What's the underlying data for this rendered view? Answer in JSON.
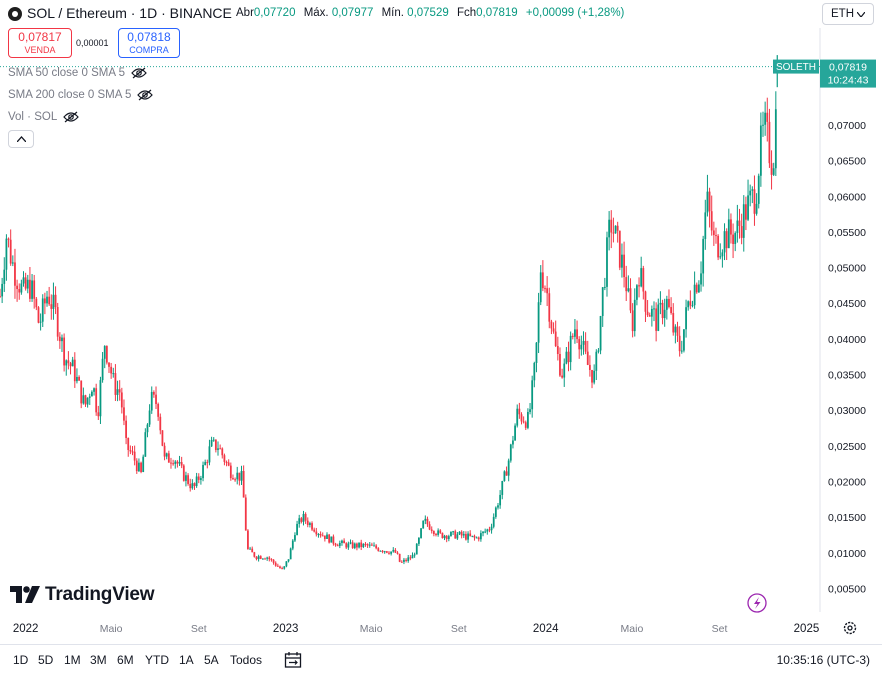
{
  "header": {
    "title": "SOL / Ethereum · 1D · BINANCE",
    "open_label": "Abr",
    "open_value": "0,07720",
    "high_label": "Máx.",
    "high_value": "0,07977",
    "low_label": "Mín.",
    "low_value": "0,07529",
    "close_label": "Fch",
    "close_value": "0,07819",
    "change": "+0,00099 (+1,28%)",
    "currency_button": "ETH"
  },
  "trade": {
    "sell_price": "0,07817",
    "sell_label": "VENDA",
    "spread": "0,00001",
    "buy_price": "0,07818",
    "buy_label": "COMPRA"
  },
  "indicators": [
    {
      "label": "SMA 50 close 0 SMA 5"
    },
    {
      "label": "SMA 200 close 0 SMA 5"
    },
    {
      "label": "Vol · SOL"
    }
  ],
  "price_tag": {
    "symbol": "SOLETH",
    "price": "0,07819",
    "countdown": "10:24:43",
    "value": 0.07819
  },
  "logo_text": "TradingView",
  "bottom": {
    "ranges": [
      "1D",
      "5D",
      "1M",
      "3M",
      "6M",
      "YTD",
      "1A",
      "5A",
      "Todos"
    ],
    "clock": "10:35:16 (UTC-3)"
  },
  "colors": {
    "up": "#089981",
    "down": "#f23645",
    "accent": "#26a69a",
    "lightning": "#9c27b0"
  },
  "chart_data": {
    "type": "line",
    "x_tick_labels": [
      "2022",
      "Maio",
      "Set",
      "2023",
      "Maio",
      "Set",
      "2024",
      "Maio",
      "Set",
      "2025"
    ],
    "y_tick_labels": [
      "0,07000",
      "0,06500",
      "0,06000",
      "0,05500",
      "0,05000",
      "0,04500",
      "0,04000",
      "0,03500",
      "0,03000",
      "0,02500",
      "0,02000",
      "0,01500",
      "0,01000",
      "0,00500"
    ],
    "y_ticks": [
      0.07,
      0.065,
      0.06,
      0.055,
      0.05,
      0.045,
      0.04,
      0.035,
      0.03,
      0.025,
      0.02,
      0.015,
      0.01,
      0.005
    ],
    "ylim": [
      0.0017,
      0.0836
    ],
    "x_range": [
      "2021-11-26",
      "2025-01-20"
    ],
    "series": [
      {
        "points": [
          [
            "2021-11-26",
            0.046
          ],
          [
            "2021-12-05",
            0.0545
          ],
          [
            "2021-12-15",
            0.05
          ],
          [
            "2021-12-28",
            0.0465
          ],
          [
            "2022-01-08",
            0.0475
          ],
          [
            "2022-01-20",
            0.042
          ],
          [
            "2022-02-01",
            0.0465
          ],
          [
            "2022-02-12",
            0.0435
          ],
          [
            "2022-02-25",
            0.0375
          ],
          [
            "2022-03-10",
            0.0355
          ],
          [
            "2022-03-25",
            0.0305
          ],
          [
            "2022-04-05",
            0.034
          ],
          [
            "2022-04-12",
            0.0295
          ],
          [
            "2022-04-22",
            0.0395
          ],
          [
            "2022-05-05",
            0.0335
          ],
          [
            "2022-05-14",
            0.0325
          ],
          [
            "2022-05-22",
            0.025
          ],
          [
            "2022-06-01",
            0.0235
          ],
          [
            "2022-06-12",
            0.021
          ],
          [
            "2022-06-25",
            0.0315
          ],
          [
            "2022-07-05",
            0.031
          ],
          [
            "2022-07-15",
            0.023
          ],
          [
            "2022-07-28",
            0.0235
          ],
          [
            "2022-08-10",
            0.021
          ],
          [
            "2022-08-25",
            0.019
          ],
          [
            "2022-09-10",
            0.0225
          ],
          [
            "2022-09-18",
            0.025
          ],
          [
            "2022-09-28",
            0.025
          ],
          [
            "2022-10-15",
            0.0215
          ],
          [
            "2022-11-01",
            0.0205
          ],
          [
            "2022-11-08",
            0.0105
          ],
          [
            "2022-11-20",
            0.0095
          ],
          [
            "2022-12-05",
            0.0095
          ],
          [
            "2022-12-28",
            0.0075
          ],
          [
            "2023-01-06",
            0.0095
          ],
          [
            "2023-01-15",
            0.0135
          ],
          [
            "2023-01-25",
            0.015
          ],
          [
            "2023-02-15",
            0.013
          ],
          [
            "2023-03-10",
            0.0115
          ],
          [
            "2023-04-01",
            0.011
          ],
          [
            "2023-04-25",
            0.011
          ],
          [
            "2023-05-15",
            0.0105
          ],
          [
            "2023-06-05",
            0.01
          ],
          [
            "2023-06-11",
            0.0085
          ],
          [
            "2023-06-28",
            0.0095
          ],
          [
            "2023-07-05",
            0.011
          ],
          [
            "2023-07-14",
            0.0145
          ],
          [
            "2023-08-05",
            0.0125
          ],
          [
            "2023-09-01",
            0.0125
          ],
          [
            "2023-09-25",
            0.012
          ],
          [
            "2023-10-15",
            0.0135
          ],
          [
            "2023-10-30",
            0.0185
          ],
          [
            "2023-11-10",
            0.023
          ],
          [
            "2023-11-22",
            0.0295
          ],
          [
            "2023-12-08",
            0.0285
          ],
          [
            "2023-12-18",
            0.037
          ],
          [
            "2023-12-25",
            0.05
          ],
          [
            "2024-01-02",
            0.047
          ],
          [
            "2024-01-15",
            0.0385
          ],
          [
            "2024-01-25",
            0.035
          ],
          [
            "2024-02-12",
            0.042
          ],
          [
            "2024-02-28",
            0.0365
          ],
          [
            "2024-03-10",
            0.0345
          ],
          [
            "2024-03-22",
            0.0475
          ],
          [
            "2024-04-01",
            0.0565
          ],
          [
            "2024-04-10",
            0.0535
          ],
          [
            "2024-04-22",
            0.0485
          ],
          [
            "2024-05-01",
            0.0415
          ],
          [
            "2024-05-10",
            0.05
          ],
          [
            "2024-05-22",
            0.0445
          ],
          [
            "2024-06-05",
            0.0425
          ],
          [
            "2024-06-18",
            0.0455
          ],
          [
            "2024-06-30",
            0.0405
          ],
          [
            "2024-07-08",
            0.0385
          ],
          [
            "2024-07-20",
            0.0455
          ],
          [
            "2024-08-05",
            0.0495
          ],
          [
            "2024-08-14",
            0.0595
          ],
          [
            "2024-08-25",
            0.053
          ],
          [
            "2024-09-10",
            0.0545
          ],
          [
            "2024-09-25",
            0.055
          ],
          [
            "2024-10-10",
            0.0585
          ],
          [
            "2024-10-22",
            0.0605
          ],
          [
            "2024-10-28",
            0.0665
          ],
          [
            "2024-11-03",
            0.0695
          ],
          [
            "2024-11-10",
            0.0665
          ],
          [
            "2024-11-15",
            0.0645
          ],
          [
            "2024-11-19",
            0.0715
          ],
          [
            "2024-11-21",
            0.0782
          ]
        ]
      }
    ],
    "last_price": 0.07819
  }
}
